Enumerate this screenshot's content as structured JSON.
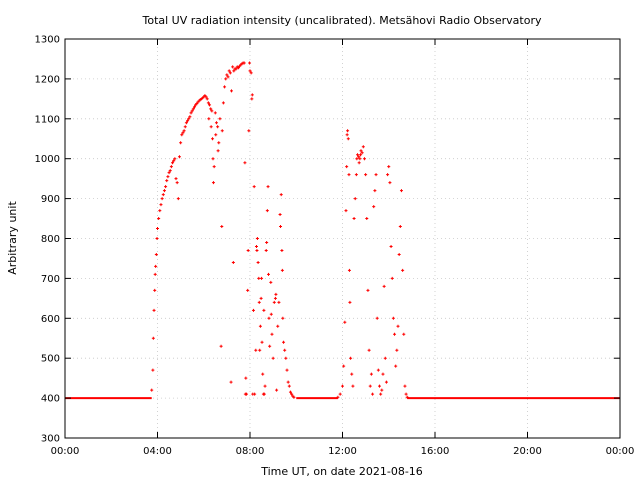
{
  "chart_data": {
    "type": "scatter",
    "title": "Total UV radiation intensity (uncalibrated). Metsähovi Radio Observatory",
    "xlabel": "Time UT, on date 2021-08-16",
    "ylabel": "Arbitrary unit",
    "xlim": [
      0,
      24
    ],
    "ylim": [
      300,
      1300
    ],
    "x_ticks": [
      {
        "value": 0,
        "label": "00:00"
      },
      {
        "value": 4,
        "label": "04:00"
      },
      {
        "value": 8,
        "label": "08:00"
      },
      {
        "value": 12,
        "label": "12:00"
      },
      {
        "value": 16,
        "label": "16:00"
      },
      {
        "value": 20,
        "label": "20:00"
      },
      {
        "value": 24,
        "label": "00:00"
      }
    ],
    "y_ticks": [
      300,
      400,
      500,
      600,
      700,
      800,
      900,
      1000,
      1100,
      1200,
      1300
    ],
    "grid": true,
    "marker_color": "#ff0000",
    "baseline": {
      "value": 400,
      "ranges": [
        [
          0.0,
          3.75
        ],
        [
          10.0,
          11.8
        ],
        [
          14.8,
          24.0
        ]
      ]
    },
    "points": [
      [
        3.75,
        420
      ],
      [
        3.8,
        470
      ],
      [
        3.82,
        550
      ],
      [
        3.85,
        620
      ],
      [
        3.88,
        670
      ],
      [
        3.9,
        710
      ],
      [
        3.92,
        730
      ],
      [
        3.95,
        760
      ],
      [
        3.98,
        800
      ],
      [
        4.0,
        825
      ],
      [
        4.05,
        850
      ],
      [
        4.1,
        870
      ],
      [
        4.15,
        885
      ],
      [
        4.2,
        900
      ],
      [
        4.25,
        910
      ],
      [
        4.3,
        920
      ],
      [
        4.35,
        930
      ],
      [
        4.4,
        945
      ],
      [
        4.45,
        955
      ],
      [
        4.5,
        965
      ],
      [
        4.55,
        970
      ],
      [
        4.6,
        980
      ],
      [
        4.65,
        990
      ],
      [
        4.7,
        995
      ],
      [
        4.75,
        1000
      ],
      [
        4.8,
        950
      ],
      [
        4.85,
        940
      ],
      [
        4.9,
        900
      ],
      [
        4.95,
        1005
      ],
      [
        5.0,
        1040
      ],
      [
        5.05,
        1060
      ],
      [
        5.1,
        1065
      ],
      [
        5.15,
        1070
      ],
      [
        5.2,
        1080
      ],
      [
        5.25,
        1090
      ],
      [
        5.3,
        1095
      ],
      [
        5.35,
        1100
      ],
      [
        5.4,
        1105
      ],
      [
        5.45,
        1115
      ],
      [
        5.5,
        1120
      ],
      [
        5.55,
        1125
      ],
      [
        5.6,
        1130
      ],
      [
        5.65,
        1135
      ],
      [
        5.7,
        1138
      ],
      [
        5.75,
        1142
      ],
      [
        5.8,
        1145
      ],
      [
        5.85,
        1148
      ],
      [
        5.9,
        1150
      ],
      [
        5.95,
        1152
      ],
      [
        6.0,
        1155
      ],
      [
        6.05,
        1158
      ],
      [
        6.1,
        1155
      ],
      [
        6.15,
        1150
      ],
      [
        6.2,
        1140
      ],
      [
        6.22,
        1100
      ],
      [
        6.25,
        1135
      ],
      [
        6.3,
        1125
      ],
      [
        6.32,
        1080
      ],
      [
        6.35,
        1120
      ],
      [
        6.38,
        1050
      ],
      [
        6.4,
        1000
      ],
      [
        6.42,
        940
      ],
      [
        6.45,
        980
      ],
      [
        6.5,
        1115
      ],
      [
        6.52,
        1060
      ],
      [
        6.55,
        1090
      ],
      [
        6.6,
        1080
      ],
      [
        6.62,
        1020
      ],
      [
        6.65,
        1040
      ],
      [
        6.7,
        1100
      ],
      [
        6.75,
        530
      ],
      [
        6.78,
        830
      ],
      [
        6.8,
        1070
      ],
      [
        6.85,
        1140
      ],
      [
        6.9,
        1180
      ],
      [
        6.95,
        1200
      ],
      [
        7.0,
        1210
      ],
      [
        7.05,
        1205
      ],
      [
        7.1,
        1220
      ],
      [
        7.15,
        1215
      ],
      [
        7.18,
        440
      ],
      [
        7.2,
        1170
      ],
      [
        7.25,
        1230
      ],
      [
        7.28,
        740
      ],
      [
        7.3,
        1220
      ],
      [
        7.35,
        1225
      ],
      [
        7.4,
        1225
      ],
      [
        7.45,
        1230
      ],
      [
        7.5,
        1228
      ],
      [
        7.55,
        1232
      ],
      [
        7.6,
        1235
      ],
      [
        7.65,
        1238
      ],
      [
        7.7,
        1240
      ],
      [
        7.75,
        1240
      ],
      [
        7.78,
        990
      ],
      [
        7.8,
        410
      ],
      [
        7.82,
        450
      ],
      [
        7.85,
        410
      ],
      [
        7.9,
        670
      ],
      [
        7.92,
        770
      ],
      [
        7.95,
        1070
      ],
      [
        7.98,
        1240
      ],
      [
        8.0,
        1220
      ],
      [
        8.05,
        1215
      ],
      [
        8.08,
        1150
      ],
      [
        8.1,
        1160
      ],
      [
        8.12,
        410
      ],
      [
        8.15,
        620
      ],
      [
        8.18,
        930
      ],
      [
        8.2,
        410
      ],
      [
        8.25,
        520
      ],
      [
        8.28,
        780
      ],
      [
        8.3,
        770
      ],
      [
        8.32,
        800
      ],
      [
        8.35,
        740
      ],
      [
        8.38,
        700
      ],
      [
        8.4,
        640
      ],
      [
        8.42,
        520
      ],
      [
        8.45,
        580
      ],
      [
        8.48,
        650
      ],
      [
        8.5,
        700
      ],
      [
        8.52,
        540
      ],
      [
        8.55,
        460
      ],
      [
        8.58,
        410
      ],
      [
        8.6,
        620
      ],
      [
        8.62,
        410
      ],
      [
        8.65,
        430
      ],
      [
        8.7,
        770
      ],
      [
        8.72,
        790
      ],
      [
        8.75,
        870
      ],
      [
        8.78,
        930
      ],
      [
        8.8,
        710
      ],
      [
        8.82,
        600
      ],
      [
        8.85,
        530
      ],
      [
        8.9,
        690
      ],
      [
        8.92,
        610
      ],
      [
        8.95,
        560
      ],
      [
        9.0,
        500
      ],
      [
        9.05,
        640
      ],
      [
        9.1,
        650
      ],
      [
        9.12,
        660
      ],
      [
        9.15,
        420
      ],
      [
        9.2,
        580
      ],
      [
        9.25,
        640
      ],
      [
        9.3,
        860
      ],
      [
        9.32,
        830
      ],
      [
        9.35,
        910
      ],
      [
        9.38,
        770
      ],
      [
        9.4,
        720
      ],
      [
        9.42,
        600
      ],
      [
        9.45,
        540
      ],
      [
        9.5,
        520
      ],
      [
        9.55,
        500
      ],
      [
        9.6,
        470
      ],
      [
        9.65,
        440
      ],
      [
        9.7,
        430
      ],
      [
        9.75,
        415
      ],
      [
        9.8,
        410
      ],
      [
        9.85,
        405
      ],
      [
        9.9,
        402
      ],
      [
        11.8,
        402
      ],
      [
        11.9,
        410
      ],
      [
        12.0,
        430
      ],
      [
        12.05,
        480
      ],
      [
        12.1,
        590
      ],
      [
        12.15,
        870
      ],
      [
        12.18,
        980
      ],
      [
        12.2,
        1060
      ],
      [
        12.22,
        1070
      ],
      [
        12.25,
        1050
      ],
      [
        12.28,
        960
      ],
      [
        12.3,
        720
      ],
      [
        12.32,
        640
      ],
      [
        12.35,
        500
      ],
      [
        12.4,
        460
      ],
      [
        12.45,
        430
      ],
      [
        12.5,
        850
      ],
      [
        12.55,
        900
      ],
      [
        12.6,
        960
      ],
      [
        12.62,
        1000
      ],
      [
        12.65,
        1010
      ],
      [
        12.7,
        1005
      ],
      [
        12.72,
        990
      ],
      [
        12.75,
        1000
      ],
      [
        12.78,
        1010
      ],
      [
        12.8,
        1020
      ],
      [
        12.85,
        1015
      ],
      [
        12.9,
        1030
      ],
      [
        12.95,
        1000
      ],
      [
        13.0,
        960
      ],
      [
        13.05,
        850
      ],
      [
        13.1,
        670
      ],
      [
        13.15,
        520
      ],
      [
        13.2,
        430
      ],
      [
        13.25,
        460
      ],
      [
        13.3,
        410
      ],
      [
        13.35,
        880
      ],
      [
        13.4,
        920
      ],
      [
        13.45,
        960
      ],
      [
        13.5,
        600
      ],
      [
        13.55,
        470
      ],
      [
        13.6,
        430
      ],
      [
        13.65,
        410
      ],
      [
        13.7,
        420
      ],
      [
        13.75,
        460
      ],
      [
        13.8,
        680
      ],
      [
        13.85,
        500
      ],
      [
        13.9,
        440
      ],
      [
        13.95,
        960
      ],
      [
        14.0,
        980
      ],
      [
        14.05,
        940
      ],
      [
        14.1,
        780
      ],
      [
        14.15,
        700
      ],
      [
        14.2,
        600
      ],
      [
        14.25,
        560
      ],
      [
        14.3,
        480
      ],
      [
        14.35,
        520
      ],
      [
        14.4,
        580
      ],
      [
        14.45,
        760
      ],
      [
        14.5,
        830
      ],
      [
        14.55,
        920
      ],
      [
        14.6,
        720
      ],
      [
        14.65,
        560
      ],
      [
        14.7,
        430
      ],
      [
        14.75,
        410
      ],
      [
        14.8,
        402
      ]
    ]
  }
}
